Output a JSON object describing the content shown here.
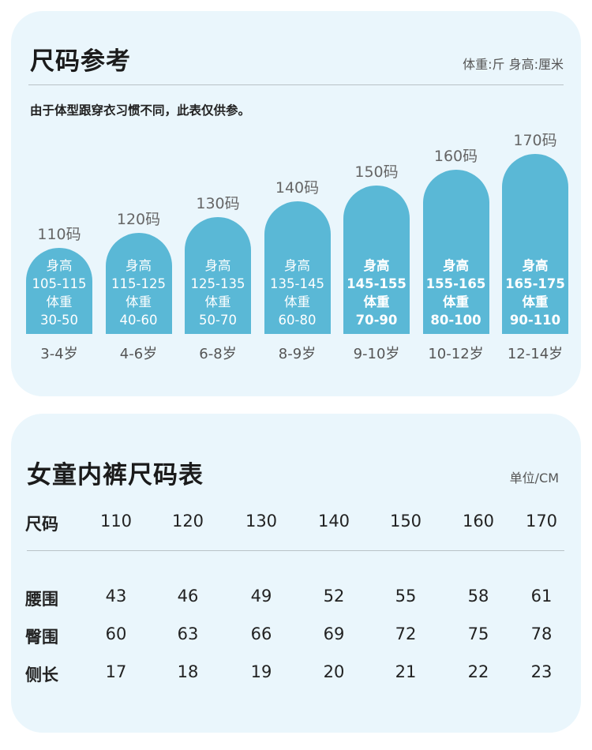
{
  "size_reference": {
    "title": "尺码参考",
    "units_note": "体重:斤  身高:厘米",
    "subtitle": "由于体型跟穿衣习惯不同，此表仅供参。",
    "height_label": "身高",
    "weight_label": "体重",
    "sizes": [
      {
        "size": "110码",
        "height": "105-115",
        "weight": "30-50",
        "age": "3-4岁",
        "bold": false
      },
      {
        "size": "120码",
        "height": "115-125",
        "weight": "40-60",
        "age": "4-6岁",
        "bold": false
      },
      {
        "size": "130码",
        "height": "125-135",
        "weight": "50-70",
        "age": "6-8岁",
        "bold": false
      },
      {
        "size": "140码",
        "height": "135-145",
        "weight": "60-80",
        "age": "8-9岁",
        "bold": false
      },
      {
        "size": "150码",
        "height": "145-155",
        "weight": "70-90",
        "age": "9-10岁",
        "bold": true
      },
      {
        "size": "160码",
        "height": "155-165",
        "weight": "80-100",
        "age": "10-12岁",
        "bold": true
      },
      {
        "size": "170码",
        "height": "165-175",
        "weight": "90-110",
        "age": "12-14岁",
        "bold": true
      }
    ],
    "bar_color": "#5ab8d6"
  },
  "size_table": {
    "title": "女童内裤尺码表",
    "unit_note": "单位/CM",
    "header_label": "尺码",
    "sizes": [
      "110",
      "120",
      "130",
      "140",
      "150",
      "160",
      "170"
    ],
    "rows": [
      {
        "label": "腰围",
        "values": [
          "43",
          "46",
          "49",
          "52",
          "55",
          "58",
          "61"
        ]
      },
      {
        "label": "臀围",
        "values": [
          "60",
          "63",
          "66",
          "69",
          "72",
          "75",
          "78"
        ]
      },
      {
        "label": "侧长",
        "values": [
          "17",
          "18",
          "19",
          "20",
          "21",
          "22",
          "23"
        ]
      }
    ]
  }
}
